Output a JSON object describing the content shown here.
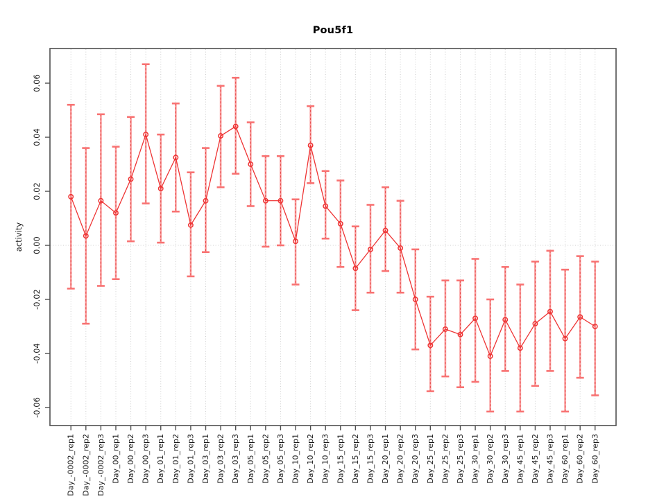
{
  "chart_data": {
    "type": "scatter",
    "title": "Pou5f1",
    "xlabel": "",
    "ylabel": "activity",
    "legend_position": "none",
    "grid": {
      "vertical": "dotted at every category",
      "horizontal": "dotted at 0.00 only"
    },
    "ylim": [
      -0.065,
      0.07
    ],
    "ytick_labels": [
      "0.06",
      "0.04",
      "0.02",
      "0.00",
      "-0.02",
      "-0.04",
      "-0.06"
    ],
    "ytick_values": [
      0.06,
      0.04,
      0.02,
      0.0,
      -0.02,
      -0.04,
      -0.06
    ],
    "categories": [
      "Day_-0002_rep1",
      "Day_-0002_rep2",
      "Day_-0002_rep3",
      "Day_00_rep1",
      "Day_00_rep2",
      "Day_00_rep3",
      "Day_01_rep1",
      "Day_01_rep2",
      "Day_01_rep3",
      "Day_03_rep1",
      "Day_03_rep2",
      "Day_03_rep3",
      "Day_05_rep1",
      "Day_05_rep2",
      "Day_05_rep3",
      "Day_10_rep1",
      "Day_10_rep2",
      "Day_10_rep3",
      "Day_15_rep1",
      "Day_15_rep2",
      "Day_15_rep3",
      "Day_20_rep1",
      "Day_20_rep2",
      "Day_20_rep3",
      "Day_25_rep1",
      "Day_25_rep2",
      "Day_25_rep3",
      "Day_30_rep1",
      "Day_30_rep2",
      "Day_30_rep3",
      "Day_45_rep1",
      "Day_45_rep2",
      "Day_45_rep3",
      "Day_60_rep1",
      "Day_60_rep2",
      "Day_60_rep3"
    ],
    "series": [
      {
        "name": "activity",
        "marker": "open-circle",
        "values": [
          0.018,
          0.0035,
          0.0165,
          0.012,
          0.0245,
          0.041,
          0.021,
          0.0325,
          0.0075,
          0.0165,
          0.0405,
          0.044,
          0.03,
          0.0165,
          0.0165,
          0.0015,
          0.037,
          0.0145,
          0.008,
          -0.0085,
          -0.0015,
          0.0055,
          -0.001,
          -0.02,
          -0.037,
          -0.031,
          -0.033,
          -0.027,
          -0.041,
          -0.0275,
          -0.038,
          -0.029,
          -0.0245,
          -0.0345,
          -0.0265,
          -0.03
        ],
        "err_lo": [
          -0.016,
          -0.029,
          -0.015,
          -0.0125,
          0.0015,
          0.0155,
          0.001,
          0.0125,
          -0.0115,
          -0.0025,
          0.0215,
          0.0265,
          0.0145,
          -0.0005,
          0.0,
          -0.0145,
          0.023,
          0.0025,
          -0.008,
          -0.024,
          -0.0175,
          -0.0095,
          -0.0175,
          -0.0385,
          -0.054,
          -0.0485,
          -0.0525,
          -0.0505,
          -0.0615,
          -0.0465,
          -0.0615,
          -0.052,
          -0.0465,
          -0.0615,
          -0.049,
          -0.0555
        ],
        "err_hi": [
          0.052,
          0.036,
          0.0485,
          0.0365,
          0.0475,
          0.067,
          0.041,
          0.0525,
          0.027,
          0.036,
          0.059,
          0.062,
          0.0455,
          0.033,
          0.033,
          0.017,
          0.0515,
          0.0275,
          0.024,
          0.007,
          0.015,
          0.0215,
          0.0165,
          -0.0015,
          -0.019,
          -0.013,
          -0.013,
          -0.005,
          -0.02,
          -0.008,
          -0.0145,
          -0.006,
          -0.002,
          -0.009,
          -0.004,
          -0.006
        ]
      }
    ],
    "colors": {
      "point_and_line": "#ee3434",
      "errorbar_stem": "#fa9c9c",
      "errorbar_dash": "#e54848",
      "errorbar_cap": "#f87272",
      "gridline": "#cdcdcd",
      "frame_and_ticks": "#4f4f4f",
      "tick_label_text": "#1c1c1c",
      "title_text": "#000000"
    }
  }
}
